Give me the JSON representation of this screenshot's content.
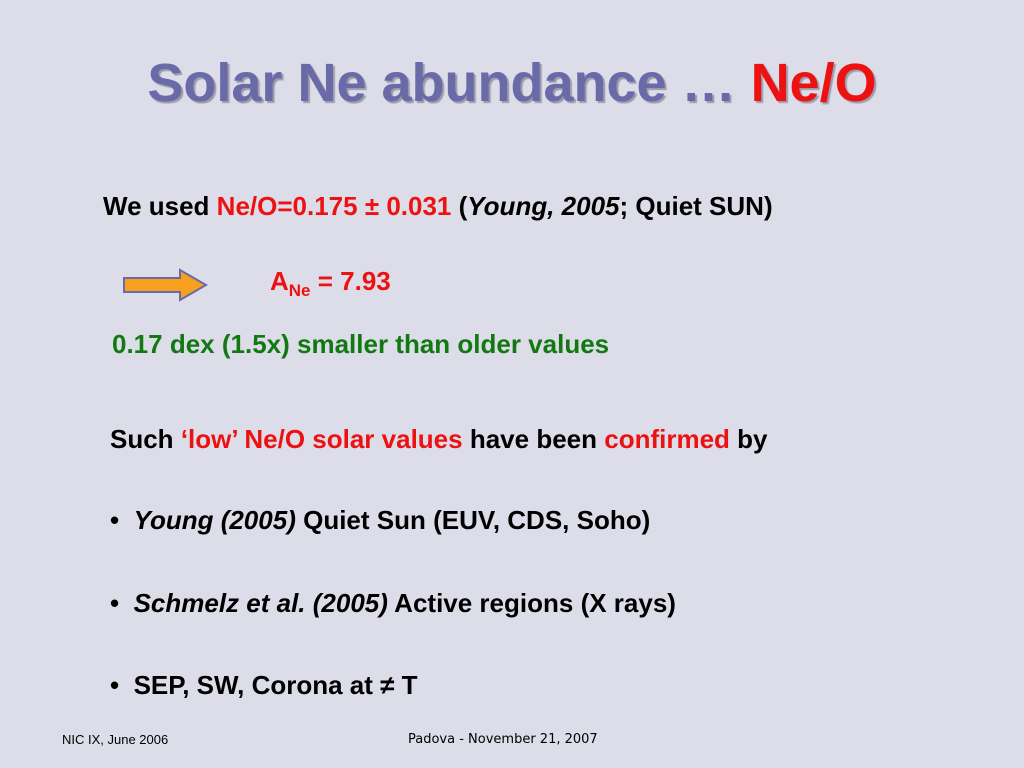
{
  "title": {
    "main": "Solar Ne abundance …",
    "highlight": "Ne/O"
  },
  "usage": {
    "lead": "We used",
    "ratio": "Ne/O=0.175 ± 0.031",
    "open": "(",
    "source": "Young, 2005",
    "rest": "; Quiet SUN)"
  },
  "result": {
    "symbol": "A",
    "subscript": "Ne",
    "value": "= 7.93"
  },
  "note": "0.17 dex (1.5x) smaller than older values",
  "confirm": {
    "lead": "Such",
    "low": "‘low’ Ne/O solar values",
    "middle": "have been",
    "confirmed": "confirmed",
    "end": "by"
  },
  "bullets": [
    {
      "ref": "Young (2005)",
      "text": "Quiet Sun (EUV, CDS, Soho)"
    },
    {
      "ref": "Schmelz et al. (2005)",
      "text": "Active regions (X rays)"
    },
    {
      "text": "SEP, SW, Corona at ≠ T"
    }
  ],
  "footer": {
    "left": "NIC IX, June 2006",
    "center": "Padova - November 21, 2007"
  }
}
